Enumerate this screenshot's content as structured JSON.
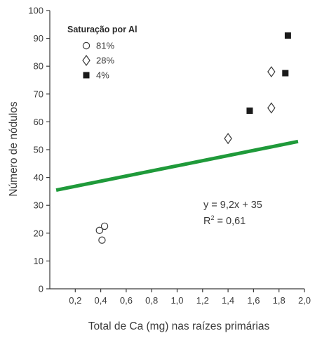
{
  "chart_data": {
    "type": "scatter",
    "title": "",
    "xlabel": "Total de Ca (mg) nas raízes primárias",
    "ylabel": "Número de nódulos",
    "xlim": [
      0,
      2.0
    ],
    "ylim": [
      0,
      100
    ],
    "xticks": [
      0.2,
      0.4,
      0.6,
      0.8,
      1.0,
      1.2,
      1.4,
      1.6,
      1.8,
      2.0
    ],
    "xtick_labels": [
      "0,2",
      "0,4",
      "0,6",
      "0,8",
      "1,0",
      "1,2",
      "1,4",
      "1,6",
      "1,8",
      "2,0"
    ],
    "yticks": [
      0,
      10,
      20,
      30,
      40,
      50,
      60,
      70,
      80,
      90,
      100
    ],
    "ytick_labels": [
      "0",
      "10",
      "20",
      "30",
      "40",
      "50",
      "60",
      "70",
      "80",
      "90",
      "100"
    ],
    "grid": false,
    "legend": {
      "title": "Saturação por Al",
      "placement": "top-left"
    },
    "series": [
      {
        "name": "81%",
        "marker": "circle-open",
        "color": "#3a3a3a",
        "points": [
          [
            0.39,
            21
          ],
          [
            0.43,
            22.5
          ],
          [
            0.41,
            17.5
          ]
        ]
      },
      {
        "name": "28%",
        "marker": "diamond-open",
        "color": "#3a3a3a",
        "points": [
          [
            1.4,
            54
          ],
          [
            1.74,
            78
          ],
          [
            1.74,
            65
          ]
        ]
      },
      {
        "name": "4%",
        "marker": "square-filled",
        "color": "#1a1a1a",
        "points": [
          [
            1.57,
            64
          ],
          [
            1.85,
            77.5
          ],
          [
            1.87,
            91
          ]
        ]
      }
    ],
    "trendline": {
      "color": "#1f9a3a",
      "slope": 9.2,
      "intercept": 35,
      "x_range": [
        0.05,
        1.95
      ],
      "equation": "y = 9,2x + 35",
      "r2_label": "R",
      "r2_sup": "2",
      "r2_value": " = 0,61"
    }
  }
}
